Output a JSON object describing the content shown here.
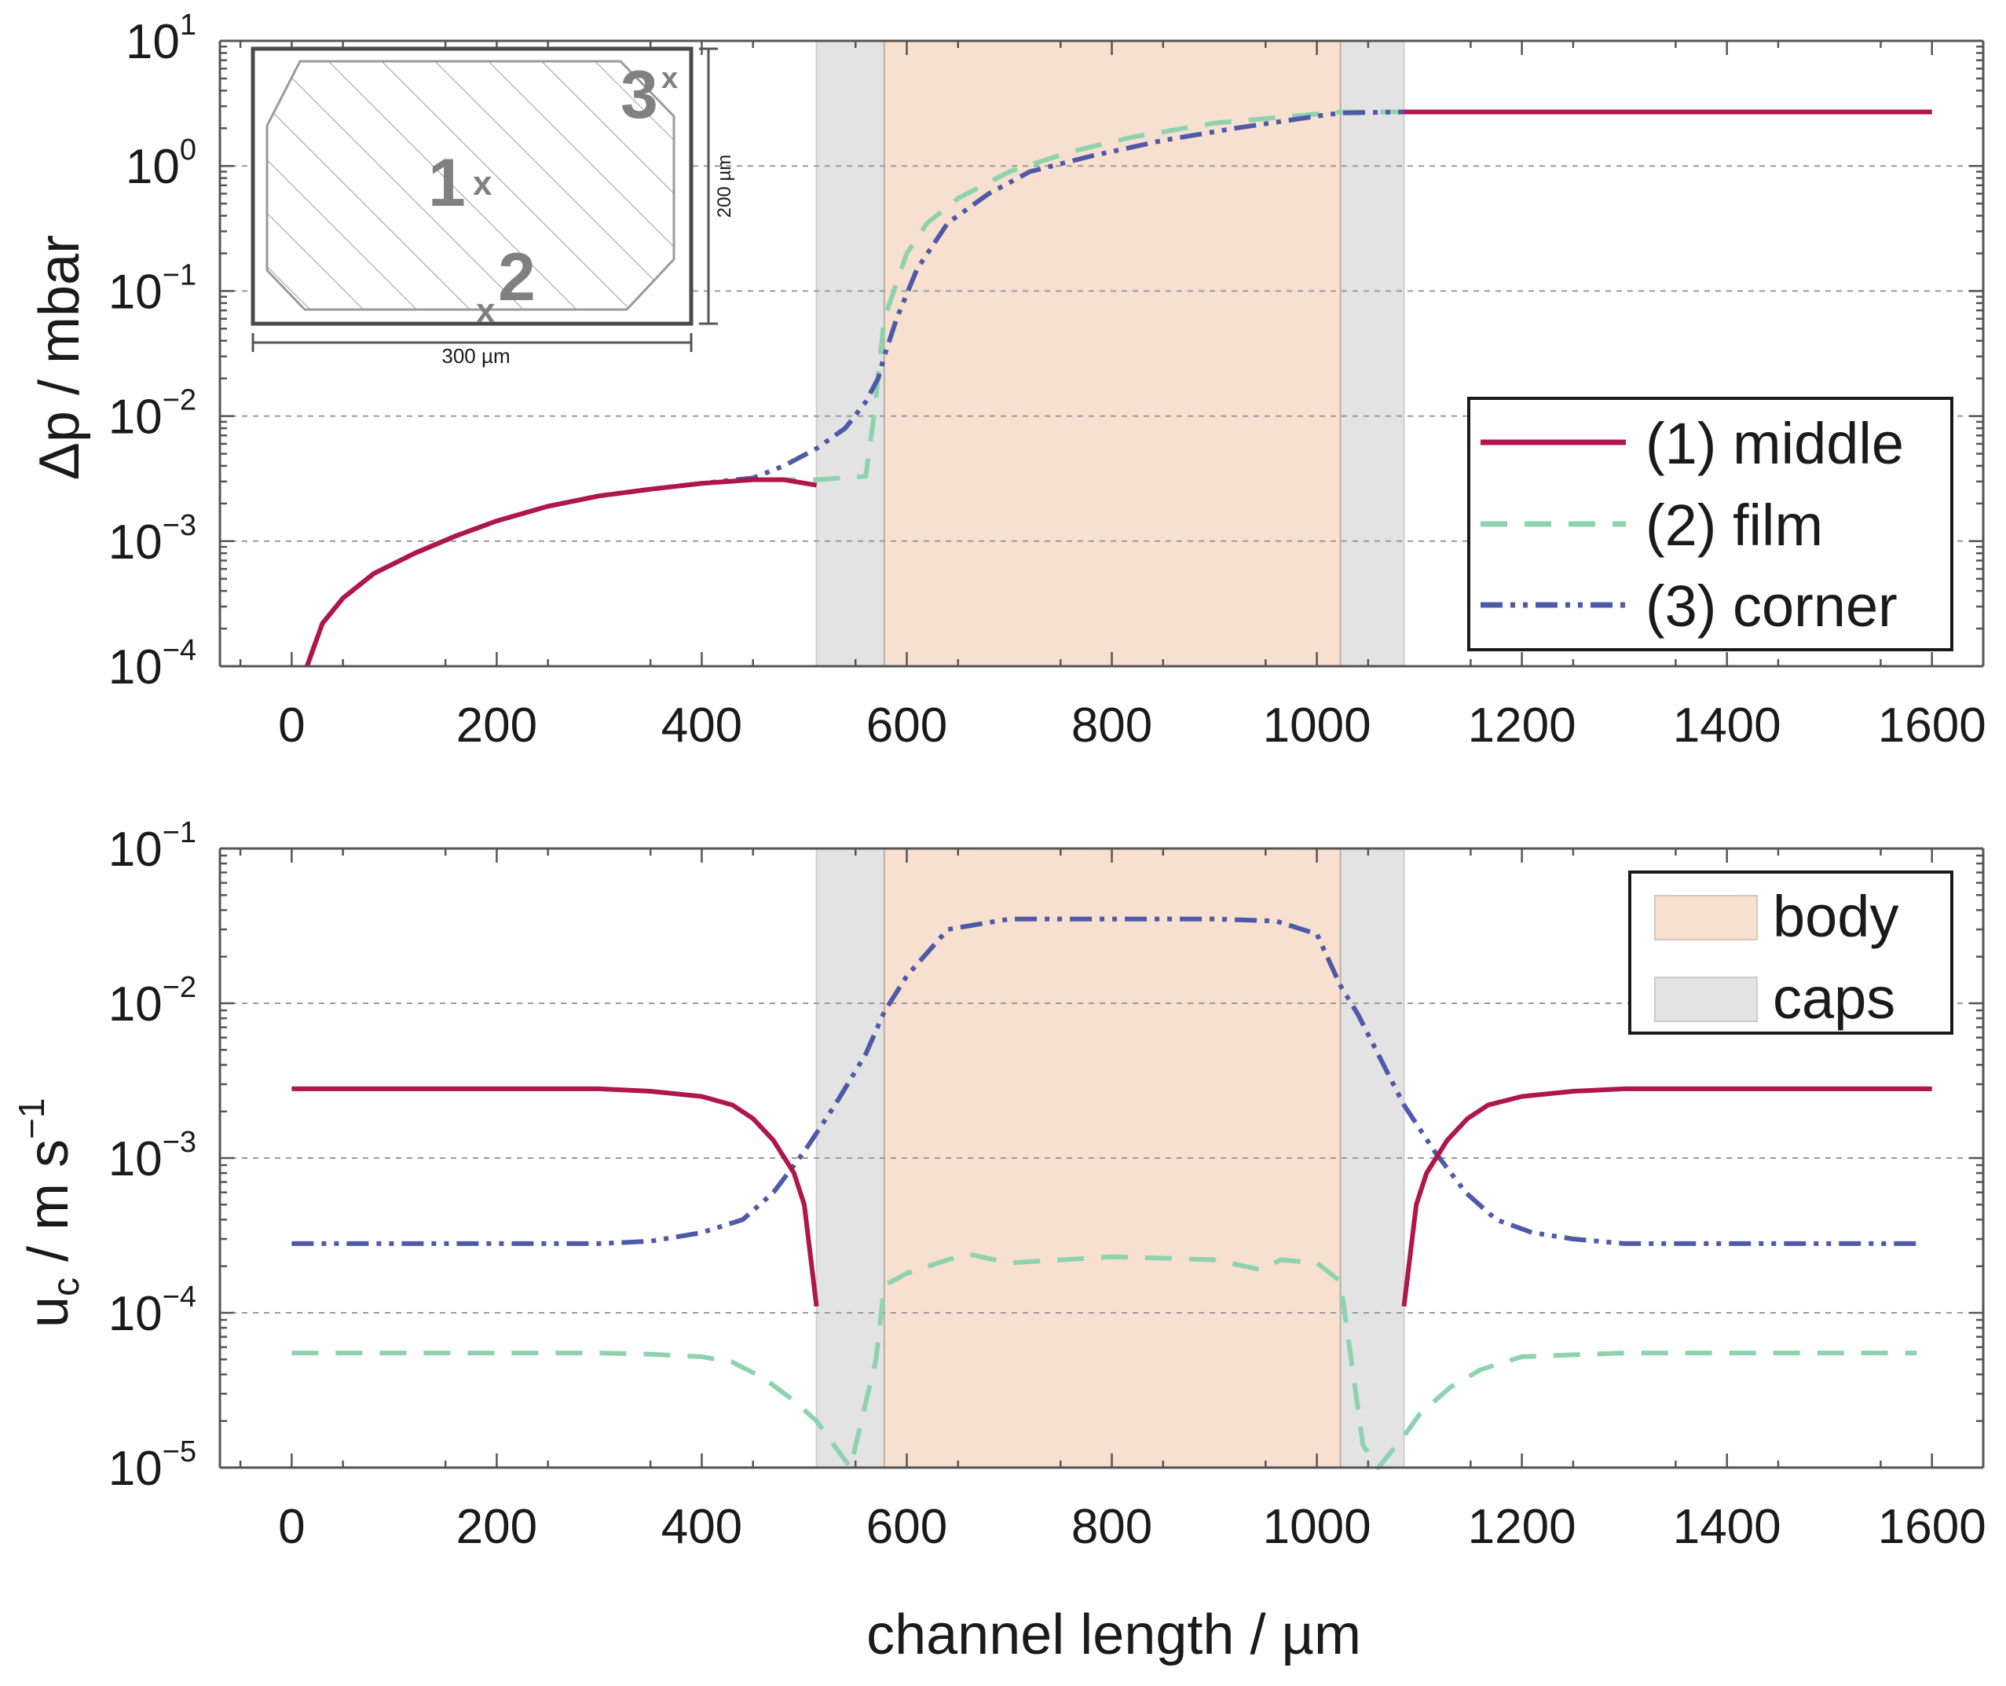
{
  "chart_data": [
    {
      "type": "line",
      "panel": "top",
      "ylabel": "Δp  /  mbar",
      "yscale": "log",
      "ylim": [
        0.0001,
        10
      ],
      "yticks": [
        {
          "base": "10",
          "exp": "1"
        },
        {
          "base": "10",
          "exp": "0"
        },
        {
          "base": "10",
          "exp": "-1"
        },
        {
          "base": "10",
          "exp": "-2"
        },
        {
          "base": "10",
          "exp": "-3"
        },
        {
          "base": "10",
          "exp": "-4"
        }
      ],
      "xlim": [
        -70,
        1650
      ],
      "xticks": [
        "0",
        "200",
        "400",
        "600",
        "800",
        "1000",
        "1200",
        "1400",
        "1600"
      ],
      "regions": [
        {
          "name": "caps",
          "x0": 512,
          "x1": 1085,
          "color": "#e3e3e3"
        },
        {
          "name": "body",
          "x0": 578,
          "x1": 1023,
          "color": "#f7e0cf"
        }
      ],
      "series": [
        {
          "name": "(1) middle",
          "color": "#b0154b",
          "dash": "solid",
          "x": [
            15,
            30,
            50,
            80,
            120,
            160,
            200,
            250,
            300,
            350,
            400,
            450,
            480,
            512
          ],
          "y": [
            0.0001,
            0.00022,
            0.00035,
            0.00055,
            0.0008,
            0.0011,
            0.00145,
            0.0019,
            0.0023,
            0.0026,
            0.0029,
            0.0031,
            0.0031,
            0.0028
          ]
        },
        {
          "name": "(1) middle",
          "color": "#b0154b",
          "dash": "solid",
          "x": [
            1085,
            1600
          ],
          "y": [
            2.7,
            2.7
          ]
        },
        {
          "name": "(2) film",
          "color": "#8dd3ae",
          "dash": "dashed",
          "x": [
            15,
            30,
            50,
            80,
            120,
            160,
            200,
            250,
            300,
            350,
            400,
            450,
            512,
            560,
            568,
            578,
            600,
            620,
            650,
            700,
            760,
            820,
            900,
            1000,
            1023,
            1085,
            1600
          ],
          "y": [
            0.0001,
            0.00022,
            0.00035,
            0.00055,
            0.0008,
            0.0011,
            0.00145,
            0.0019,
            0.0023,
            0.0026,
            0.0029,
            0.0031,
            0.0031,
            0.0033,
            0.01,
            0.06,
            0.2,
            0.35,
            0.55,
            0.9,
            1.3,
            1.7,
            2.2,
            2.6,
            2.7,
            2.7,
            2.7
          ]
        },
        {
          "name": "(3) corner",
          "color": "#4e5aa8",
          "dash": "dashdotdot",
          "x": [
            15,
            30,
            50,
            80,
            120,
            160,
            200,
            250,
            300,
            350,
            400,
            450,
            480,
            512,
            540,
            560,
            572,
            578,
            590,
            610,
            640,
            680,
            720,
            780,
            850,
            920,
            1000,
            1023,
            1085,
            1600
          ],
          "y": [
            0.0001,
            0.00022,
            0.00035,
            0.00055,
            0.0008,
            0.0011,
            0.00145,
            0.0019,
            0.0023,
            0.0026,
            0.0029,
            0.0032,
            0.004,
            0.0055,
            0.008,
            0.013,
            0.02,
            0.03,
            0.06,
            0.15,
            0.35,
            0.6,
            0.9,
            1.2,
            1.6,
            2.0,
            2.5,
            2.65,
            2.7,
            2.7
          ]
        }
      ],
      "legend": {
        "position": "bottom-right",
        "entries": [
          "(1) middle",
          "(2) film",
          "(3) corner"
        ]
      },
      "inset": {
        "labels": [
          "1",
          "2",
          "3"
        ],
        "markers": [
          "x",
          "x",
          "x"
        ],
        "width_label": "300 µm",
        "height_label": "200 µm"
      }
    },
    {
      "type": "line",
      "panel": "bottom",
      "ylabel": "u",
      "ylabel_sub": "c",
      "ylabel_rest": "  /  m s",
      "ylabel_sup": "−1",
      "yscale": "log",
      "ylim": [
        1e-05,
        0.1
      ],
      "yticks": [
        {
          "base": "10",
          "exp": "-1"
        },
        {
          "base": "10",
          "exp": "-2"
        },
        {
          "base": "10",
          "exp": "-3"
        },
        {
          "base": "10",
          "exp": "-4"
        },
        {
          "base": "10",
          "exp": "-5"
        }
      ],
      "xlim": [
        -70,
        1650
      ],
      "xticks": [
        "0",
        "200",
        "400",
        "600",
        "800",
        "1000",
        "1200",
        "1400",
        "1600"
      ],
      "xlabel": "channel length  /  µm",
      "regions": [
        {
          "name": "caps",
          "x0": 512,
          "x1": 1085,
          "color": "#e3e3e3"
        },
        {
          "name": "body",
          "x0": 578,
          "x1": 1023,
          "color": "#f7e0cf"
        }
      ],
      "series": [
        {
          "name": "(1) middle",
          "color": "#b0154b",
          "dash": "solid",
          "x": [
            0,
            100,
            200,
            300,
            350,
            400,
            430,
            450,
            470,
            490,
            500,
            512
          ],
          "y": [
            0.0028,
            0.0028,
            0.0028,
            0.0028,
            0.0027,
            0.0025,
            0.0022,
            0.0018,
            0.0013,
            0.0008,
            0.0005,
            0.00011
          ]
        },
        {
          "name": "(1) middle",
          "color": "#b0154b",
          "dash": "solid",
          "x": [
            1085,
            1097,
            1107,
            1127,
            1147,
            1167,
            1200,
            1250,
            1300,
            1400,
            1500,
            1600
          ],
          "y": [
            0.00011,
            0.0005,
            0.0008,
            0.0013,
            0.0018,
            0.0022,
            0.0025,
            0.0027,
            0.0028,
            0.0028,
            0.0028,
            0.0028
          ]
        },
        {
          "name": "(2) film",
          "color": "#8dd3ae",
          "dash": "dashed",
          "x": [
            0,
            100,
            200,
            300,
            350,
            400,
            430,
            460,
            490,
            512,
            545,
            570,
            578,
            600,
            640,
            660,
            700,
            800,
            900,
            945,
            965,
            1000,
            1023,
            1045,
            1060,
            1085,
            1100,
            1130,
            1160,
            1200,
            1300,
            1400,
            1500,
            1585
          ],
          "y": [
            5.5e-05,
            5.5e-05,
            5.5e-05,
            5.5e-05,
            5.4e-05,
            5.2e-05,
            4.8e-05,
            3.8e-05,
            2.7e-05,
            2e-05,
            1e-05,
            5e-05,
            0.00015,
            0.00018,
            0.00022,
            0.00024,
            0.00021,
            0.00023,
            0.00022,
            0.00019,
            0.00022,
            0.00021,
            0.00016,
            1.4e-05,
            1e-05,
            1.6e-05,
            2.2e-05,
            3.3e-05,
            4.3e-05,
            5.2e-05,
            5.5e-05,
            5.5e-05,
            5.5e-05,
            5.5e-05
          ]
        },
        {
          "name": "(3) corner",
          "color": "#4e5aa8",
          "dash": "dashdotdot",
          "x": [
            0,
            100,
            200,
            300,
            350,
            400,
            440,
            470,
            500,
            530,
            560,
            578,
            600,
            640,
            700,
            800,
            900,
            960,
            1000,
            1023,
            1040,
            1085,
            1115,
            1145,
            1175,
            1210,
            1250,
            1300,
            1400,
            1500,
            1585
          ],
          "y": [
            0.00028,
            0.00028,
            0.00028,
            0.00028,
            0.00029,
            0.00033,
            0.0004,
            0.0006,
            0.0011,
            0.0022,
            0.0047,
            0.0088,
            0.015,
            0.03,
            0.035,
            0.035,
            0.035,
            0.034,
            0.028,
            0.013,
            0.0085,
            0.0022,
            0.0011,
            0.0006,
            0.0004,
            0.00033,
            0.0003,
            0.00028,
            0.00028,
            0.00028,
            0.00028
          ]
        }
      ],
      "legend": {
        "position": "top-right",
        "entries": [
          {
            "label": "body",
            "color": "#f7e0cf"
          },
          {
            "label": "caps",
            "color": "#e3e3e3"
          }
        ]
      }
    }
  ]
}
